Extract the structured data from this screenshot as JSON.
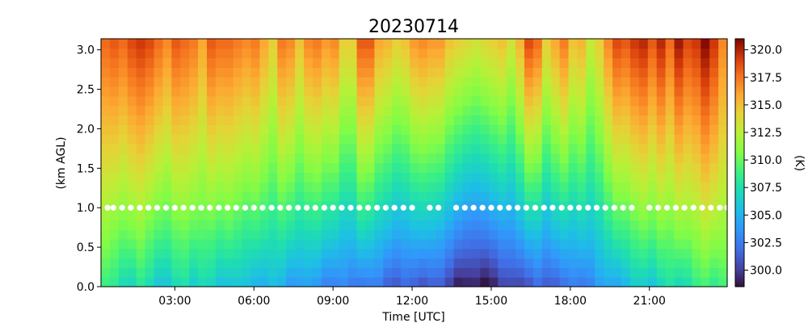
{
  "chart_data": {
    "type": "heatmap",
    "title": "20230714",
    "xlabel": "Time [UTC]",
    "ylabel": "(km AGL)",
    "colorbar_label": "(K)",
    "colormap": "turbo",
    "xlim_hours": [
      0.2,
      23.95
    ],
    "ylim": [
      0.0,
      3.14
    ],
    "x_tick_values": [
      3,
      6,
      9,
      12,
      15,
      18,
      21
    ],
    "x_tick_labels": [
      "03:00",
      "06:00",
      "09:00",
      "12:00",
      "15:00",
      "18:00",
      "21:00"
    ],
    "y_tick_values": [
      0.0,
      0.5,
      1.0,
      1.5,
      2.0,
      2.5,
      3.0
    ],
    "y_tick_labels": [
      "0.0",
      "0.5",
      "1.0",
      "1.5",
      "2.0",
      "2.5",
      "3.0"
    ],
    "color_range": [
      298.5,
      321.0
    ],
    "cbar_tick_values": [
      300.0,
      302.5,
      305.0,
      307.5,
      310.0,
      312.5,
      315.0,
      317.5,
      320.0
    ],
    "cbar_tick_labels": [
      "300.0",
      "302.5",
      "305.0",
      "307.5",
      "310.0",
      "312.5",
      "315.0",
      "317.5",
      "320.0"
    ],
    "surface_temperature_K": [
      308.5,
      307.5,
      307.0,
      307.0,
      307.5,
      306.5,
      306.0,
      306.0,
      306.5,
      307.0,
      306.5,
      307.0,
      306.0,
      305.5,
      306.0,
      305.5,
      305.0,
      305.0,
      305.0,
      305.0,
      304.5,
      304.0,
      304.0,
      303.5,
      303.5,
      303.0,
      302.5,
      302.5,
      302.5,
      302.5,
      302.0,
      302.0,
      301.5,
      301.0,
      301.0,
      301.0,
      301.0,
      301.0,
      300.5,
      300.0,
      299.0,
      298.5,
      298.5,
      298.5,
      299.0,
      299.5,
      300.0,
      300.5,
      300.5,
      301.0,
      301.0,
      301.5,
      301.5,
      302.0,
      302.5,
      303.0,
      303.5,
      304.0,
      304.5,
      305.0,
      305.5,
      306.0,
      306.0,
      306.5,
      307.0,
      307.0,
      307.5,
      308.0,
      308.5,
      308.5,
      309.0
    ],
    "top_temperature_K": [
      318.0,
      318.5,
      318.0,
      319.0,
      319.5,
      319.0,
      318.0,
      317.0,
      318.5,
      318.0,
      317.5,
      316.0,
      318.5,
      318.0,
      318.0,
      317.5,
      317.0,
      317.5,
      316.0,
      314.5,
      317.5,
      317.0,
      315.0,
      317.0,
      317.5,
      316.5,
      317.0,
      314.5,
      314.5,
      318.5,
      318.5,
      316.0,
      315.5,
      314.5,
      315.0,
      316.5,
      317.0,
      316.5,
      316.5,
      315.0,
      314.5,
      314.0,
      313.5,
      314.0,
      314.5,
      315.0,
      313.5,
      315.5,
      319.0,
      318.0,
      314.5,
      316.0,
      317.5,
      315.0,
      315.5,
      313.0,
      314.5,
      317.0,
      319.0,
      318.5,
      319.5,
      320.0,
      318.5,
      320.0,
      318.0,
      320.5,
      319.0,
      319.5,
      321.0,
      319.5,
      317.0
    ],
    "cloud_base_markers_km": 1.0,
    "cloud_base_marker_times_hours": [
      0.45,
      0.67,
      1.0,
      1.33,
      1.67,
      2.0,
      2.33,
      2.67,
      3.0,
      3.33,
      3.67,
      4.0,
      4.33,
      4.67,
      5.0,
      5.33,
      5.67,
      6.0,
      6.33,
      6.67,
      7.0,
      7.33,
      7.67,
      8.0,
      8.33,
      8.67,
      9.0,
      9.33,
      9.67,
      10.0,
      10.33,
      10.67,
      11.0,
      11.33,
      11.67,
      12.0,
      12.67,
      13.0,
      13.67,
      14.0,
      14.33,
      14.67,
      15.0,
      15.33,
      15.67,
      16.0,
      16.33,
      16.67,
      17.0,
      17.33,
      17.67,
      18.0,
      18.33,
      18.67,
      19.0,
      19.33,
      19.67,
      20.0,
      20.33,
      21.0,
      21.33,
      21.67,
      22.0,
      22.33,
      22.67,
      23.0,
      23.33,
      23.67,
      23.95
    ]
  }
}
